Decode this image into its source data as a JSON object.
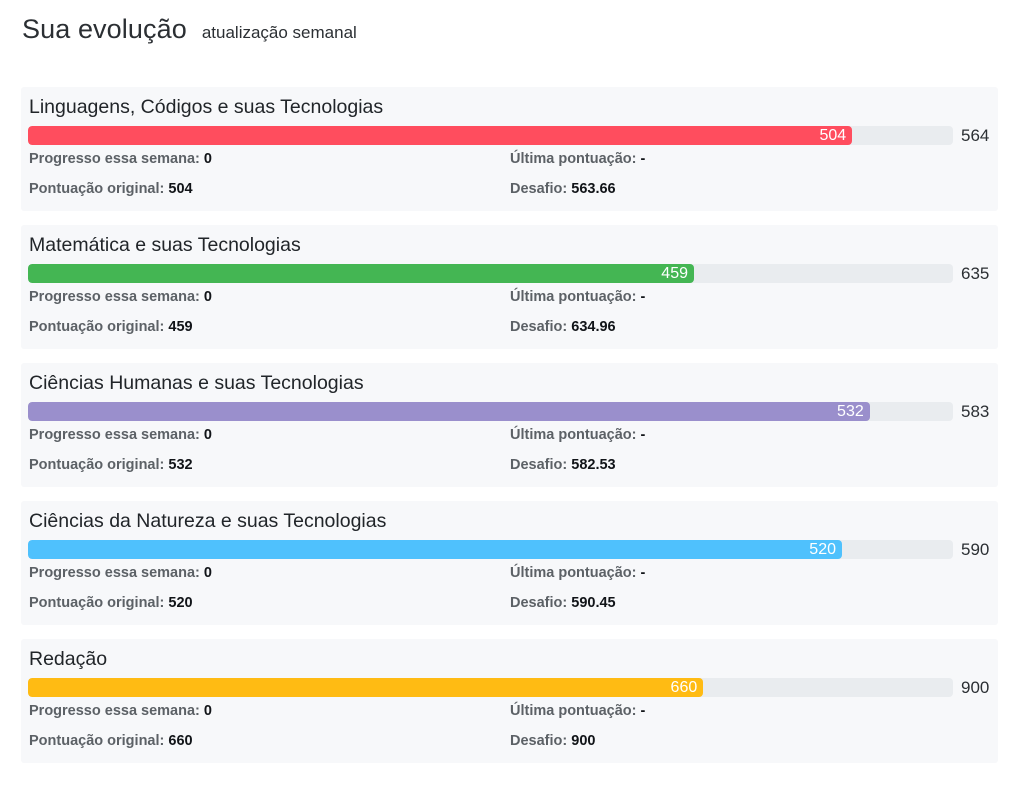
{
  "header": {
    "title": "Sua evolução",
    "subtitle": "atualização semanal"
  },
  "labels": {
    "progress": "Progresso essa semana:",
    "last_score": "Última pontuação:",
    "original_score": "Pontuação original:",
    "challenge": "Desafio:"
  },
  "subjects": [
    {
      "name": "Linguagens, Códigos e suas Tecnologias",
      "score": "504",
      "max": "564",
      "fill_fraction": 0.891,
      "color": "#ff4d5e",
      "progress": "0",
      "last_score": "-",
      "original_score": "504",
      "challenge": "563.66"
    },
    {
      "name": "Matemática e suas Tecnologias",
      "score": "459",
      "max": "635",
      "fill_fraction": 0.72,
      "color": "#44b653",
      "progress": "0",
      "last_score": "-",
      "original_score": "459",
      "challenge": "634.96"
    },
    {
      "name": "Ciências Humanas e suas Tecnologias",
      "score": "532",
      "max": "583",
      "fill_fraction": 0.91,
      "color": "#9a8fcc",
      "progress": "0",
      "last_score": "-",
      "original_score": "532",
      "challenge": "582.53"
    },
    {
      "name": "Ciências da Natureza e suas Tecnologias",
      "score": "520",
      "max": "590",
      "fill_fraction": 0.88,
      "color": "#4fc1fd",
      "progress": "0",
      "last_score": "-",
      "original_score": "520",
      "challenge": "590.45"
    },
    {
      "name": "Redação",
      "score": "660",
      "max": "900",
      "fill_fraction": 0.73,
      "color": "#ffbb13",
      "progress": "0",
      "last_score": "-",
      "original_score": "660",
      "challenge": "900"
    }
  ]
}
